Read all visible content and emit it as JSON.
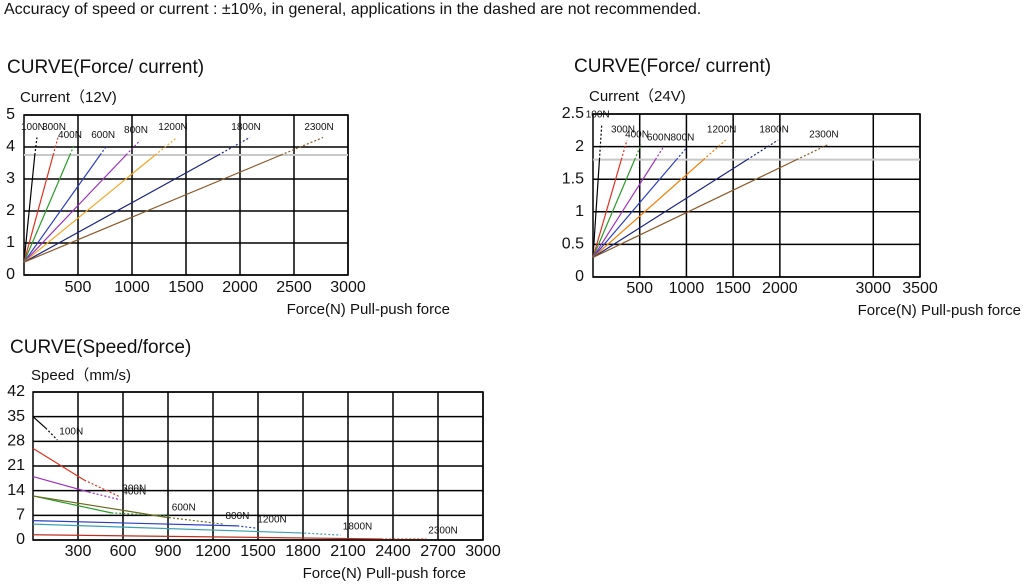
{
  "note": "Accuracy of speed or current : ±10%, in general, applications in the dashed are not recommended.",
  "chart_data": [
    {
      "type": "line",
      "title": "CURVE(Force/ current)",
      "y_label": "Current（12V)",
      "x_label": "Force(N) Pull-push force",
      "xlim": [
        0,
        3000
      ],
      "xticks": [
        500,
        1000,
        1500,
        2000,
        2500,
        3000
      ],
      "ylim": [
        0,
        5
      ],
      "yticks": [
        0,
        1,
        2,
        3,
        4,
        5
      ],
      "grid": true,
      "limit": 3.75,
      "limit_color": "#c8c8c8",
      "series": [
        {
          "name": "100N",
          "color": "#000000",
          "x": [
            0,
            100,
            120
          ],
          "values": [
            0.4,
            3.75,
            4.3
          ],
          "segment_styles": [
            "solid",
            "dashed"
          ]
        },
        {
          "name": "300N",
          "color": "#e0301e",
          "x": [
            0,
            270,
            315
          ],
          "values": [
            0.4,
            3.75,
            4.3
          ],
          "segment_styles": [
            "solid",
            "dashed"
          ]
        },
        {
          "name": "400N",
          "color": "#2a9a2a",
          "x": [
            0,
            425,
            463
          ],
          "values": [
            0.4,
            3.75,
            4.05
          ],
          "segment_styles": [
            "solid",
            "dashed"
          ]
        },
        {
          "name": "600N",
          "color": "#2b3fc4",
          "x": [
            0,
            705,
            770
          ],
          "values": [
            0.4,
            3.75,
            4.05
          ],
          "segment_styles": [
            "solid",
            "dashed"
          ]
        },
        {
          "name": "800N",
          "color": "#9b30c0",
          "x": [
            0,
            945,
            1074
          ],
          "values": [
            0.4,
            3.75,
            4.2
          ],
          "segment_styles": [
            "solid",
            "dashed"
          ]
        },
        {
          "name": "1200N",
          "color": "#f5a623",
          "x": [
            0,
            1215,
            1417
          ],
          "values": [
            0.4,
            3.75,
            4.3
          ],
          "segment_styles": [
            "solid",
            "dashed"
          ]
        },
        {
          "name": "1800N",
          "color": "#1a237e",
          "x": [
            0,
            1800,
            2093
          ],
          "values": [
            0.4,
            3.75,
            4.3
          ],
          "segment_styles": [
            "solid",
            "dashed"
          ]
        },
        {
          "name": "2300N",
          "color": "#8b5a2b",
          "x": [
            0,
            2380,
            2769
          ],
          "values": [
            0.4,
            3.75,
            4.3
          ],
          "segment_styles": [
            "solid",
            "dashed"
          ]
        }
      ]
    },
    {
      "type": "line",
      "title": "CURVE(Force/ current)",
      "y_label": "Current（24V)",
      "x_label": "Force(N) Pull-push force",
      "xlim": [
        0,
        3500
      ],
      "xticks": [
        500,
        1000,
        1500,
        2000,
        3000,
        3500
      ],
      "ylim": [
        0,
        2.5
      ],
      "yticks": [
        0,
        0.5,
        1,
        1.5,
        2,
        2.5
      ],
      "grid": true,
      "limit": 1.8,
      "limit_color": "#c8c8c8",
      "series": [
        {
          "name": "100N",
          "color": "#000000",
          "x": [
            0,
            69,
            93
          ],
          "values": [
            0.3,
            1.8,
            2.33
          ],
          "segment_styles": [
            "solid",
            "dashed"
          ]
        },
        {
          "name": "300N",
          "color": "#e0301e",
          "x": [
            0,
            303,
            364
          ],
          "values": [
            0.3,
            1.8,
            2.1
          ],
          "segment_styles": [
            "solid",
            "dashed"
          ]
        },
        {
          "name": "400N",
          "color": "#2a9a2a",
          "x": [
            0,
            446,
            514
          ],
          "values": [
            0.3,
            1.8,
            2.03
          ],
          "segment_styles": [
            "solid",
            "dashed"
          ]
        },
        {
          "name": "600N",
          "color": "#9b30c0",
          "x": [
            0,
            668,
            748
          ],
          "values": [
            0.3,
            1.8,
            1.98
          ],
          "segment_styles": [
            "solid",
            "dashed"
          ]
        },
        {
          "name": "800N",
          "color": "#2b3fc4",
          "x": [
            0,
            893,
            1000
          ],
          "values": [
            0.3,
            1.8,
            1.98
          ],
          "segment_styles": [
            "solid",
            "dashed"
          ]
        },
        {
          "name": "1200N",
          "color": "#f57c00",
          "x": [
            0,
            1183,
            1420
          ],
          "values": [
            0.3,
            1.8,
            2.1
          ],
          "segment_styles": [
            "solid",
            "dashed"
          ]
        },
        {
          "name": "1800N",
          "color": "#1a237e",
          "x": [
            0,
            1651,
            1981
          ],
          "values": [
            0.3,
            1.8,
            2.1
          ],
          "segment_styles": [
            "solid",
            "dashed"
          ]
        },
        {
          "name": "2300N",
          "color": "#8b5a2b",
          "x": [
            0,
            2180,
            2514
          ],
          "values": [
            0.3,
            1.8,
            2.03
          ],
          "segment_styles": [
            "solid",
            "dashed"
          ]
        }
      ]
    },
    {
      "type": "line",
      "title": "CURVE(Speed/force)",
      "y_label": "Speed（mm/s)",
      "x_label": "Force(N) Pull-push force",
      "xlim": [
        0,
        3000
      ],
      "xticks": [
        300,
        600,
        900,
        1200,
        1500,
        1800,
        2100,
        2400,
        2700,
        3000
      ],
      "ylim": [
        0,
        42
      ],
      "yticks": [
        0,
        7,
        14,
        21,
        28,
        35,
        42
      ],
      "grid": true,
      "series": [
        {
          "name": "100N",
          "color": "#000000",
          "x": [
            0,
            84,
            162
          ],
          "values": [
            35,
            31.8,
            28.4
          ],
          "segment_styles": [
            "solid",
            "dashed"
          ]
        },
        {
          "name": "300N",
          "color": "#e0301e",
          "x": [
            0,
            342,
            582
          ],
          "values": [
            26,
            17,
            12.2
          ],
          "segment_styles": [
            "solid",
            "dashed"
          ]
        },
        {
          "name": "400N",
          "color": "#9b30c0",
          "x": [
            0,
            372,
            582
          ],
          "values": [
            18,
            13.6,
            11.4
          ],
          "segment_styles": [
            "solid",
            "dashed"
          ]
        },
        {
          "name": "600N",
          "color": "#2a9a2a",
          "x": [
            0,
            522,
            912
          ],
          "values": [
            12.5,
            7.7,
            6.8
          ],
          "segment_styles": [
            "solid",
            "dashed"
          ]
        },
        {
          "name": "800N",
          "color": "#6b6b1e",
          "x": [
            0,
            880,
            1270
          ],
          "values": [
            12.5,
            6.5,
            4.5
          ],
          "segment_styles": [
            "solid",
            "dashed"
          ]
        },
        {
          "name": "1200N",
          "color": "#2b3fc4",
          "x": [
            0,
            1362,
            1482
          ],
          "values": [
            5.5,
            4,
            3.4
          ],
          "segment_styles": [
            "solid",
            "dashed"
          ]
        },
        {
          "name": "1800N",
          "color": "#3aa0b0",
          "x": [
            0,
            1782,
            2052
          ],
          "values": [
            4.5,
            2,
            1.4
          ],
          "segment_styles": [
            "solid",
            "dashed"
          ]
        },
        {
          "name": "2300N",
          "color": "#c0301e",
          "x": [
            0,
            2322,
            2622
          ],
          "values": [
            1.5,
            0.3,
            0.3
          ],
          "segment_styles": [
            "solid",
            "dashed"
          ]
        }
      ]
    }
  ]
}
